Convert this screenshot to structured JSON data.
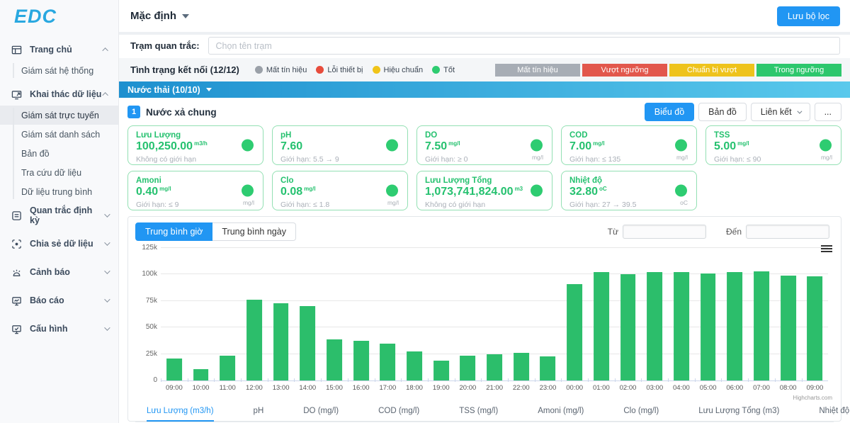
{
  "brand": {
    "logo": "EDC"
  },
  "sidebar": {
    "sections": [
      {
        "label": "Trang chủ",
        "icon": "window-icon",
        "expanded": true,
        "children": [
          "Giám sát hệ thống"
        ],
        "active_child": ""
      },
      {
        "label": "Khai thác dữ liệu",
        "icon": "monitor-share-icon",
        "expanded": true,
        "children": [
          "Giám sát trực tuyến",
          "Giám sát danh sách",
          "Bản đồ",
          "Tra cứu dữ liệu",
          "Dữ liệu trung bình"
        ],
        "active_child": "Giám sát trực tuyến"
      },
      {
        "label": "Quan trắc định kỳ",
        "icon": "form-icon",
        "expanded": false,
        "children": []
      },
      {
        "label": "Chia sẻ dữ liệu",
        "icon": "scan-share-icon",
        "expanded": false,
        "children": []
      },
      {
        "label": "Cảnh báo",
        "icon": "alarm-icon",
        "expanded": false,
        "children": []
      },
      {
        "label": "Báo cáo",
        "icon": "report-monitor-icon",
        "expanded": false,
        "children": []
      },
      {
        "label": "Cấu hình",
        "icon": "config-monitor-icon",
        "expanded": false,
        "children": []
      }
    ]
  },
  "header": {
    "preset_label": "Mặc định",
    "save_filter_button": "Lưu bộ lọc"
  },
  "filter": {
    "station_label": "Trạm quan trắc:",
    "station_placeholder": "Chọn tên trạm"
  },
  "connection": {
    "title": "Tình trạng kết nối (12/12)",
    "legend": [
      {
        "label": "Mất tín hiệu",
        "color": "#9aa0a8"
      },
      {
        "label": "Lỗi thiết bị",
        "color": "#e74c3c"
      },
      {
        "label": "Hiệu chuẩn",
        "color": "#f0c419"
      },
      {
        "label": "Tốt",
        "color": "#2ecc71"
      }
    ],
    "status_chips": [
      {
        "label": "Mất tín hiệu",
        "color": "#a7adb5"
      },
      {
        "label": "Vượt ngưỡng",
        "color": "#e2574c"
      },
      {
        "label": "Chuẩn bị vượt",
        "color": "#eec31c"
      },
      {
        "label": "Trong ngưỡng",
        "color": "#2dc76d"
      }
    ]
  },
  "group_bar": {
    "label": "Nước thải (10/10)"
  },
  "station": {
    "index": "1",
    "name": "Nước xả chung",
    "view_buttons": [
      {
        "label": "Biểu đồ",
        "active": true,
        "caret": false
      },
      {
        "label": "Bản đồ",
        "active": false,
        "caret": false
      },
      {
        "label": "Liên kết",
        "active": false,
        "caret": true
      },
      {
        "label": "...",
        "active": false,
        "caret": false
      }
    ]
  },
  "cards": [
    {
      "name": "Lưu Lượng",
      "value": "100,250.00",
      "unit": "m3/h",
      "limit": "Không có giới hạn",
      "corner_unit": "",
      "status_color": "#2ecc71"
    },
    {
      "name": "pH",
      "value": "7.60",
      "unit": "",
      "limit": "Giới hạn: 5.5 → 9",
      "corner_unit": "",
      "status_color": "#2ecc71"
    },
    {
      "name": "DO",
      "value": "7.50",
      "unit": "mg/l",
      "limit": "Giới hạn: ≥ 0",
      "corner_unit": "mg/l",
      "status_color": "#2ecc71"
    },
    {
      "name": "COD",
      "value": "7.00",
      "unit": "mg/l",
      "limit": "Giới hạn: ≤ 135",
      "corner_unit": "mg/l",
      "status_color": "#2ecc71"
    },
    {
      "name": "TSS",
      "value": "5.00",
      "unit": "mg/l",
      "limit": "Giới hạn: ≤ 90",
      "corner_unit": "mg/l",
      "status_color": "#2ecc71"
    },
    {
      "name": "Amoni",
      "value": "0.40",
      "unit": "mg/l",
      "limit": "Giới hạn: ≤ 9",
      "corner_unit": "mg/l",
      "status_color": "#2ecc71"
    },
    {
      "name": "Clo",
      "value": "0.08",
      "unit": "mg/l",
      "limit": "Giới hạn: ≤ 1.8",
      "corner_unit": "mg/l",
      "status_color": "#2ecc71"
    },
    {
      "name": "Lưu Lượng Tổng",
      "value": "1,073,741,824.00",
      "unit": "m3",
      "limit": "Không có giới hạn",
      "corner_unit": "",
      "status_color": "#2ecc71"
    },
    {
      "name": "Nhiệt độ",
      "value": "32.80",
      "unit": "oC",
      "limit": "Giới hạn: 27 → 39.5",
      "corner_unit": "oC",
      "status_color": "#2ecc71"
    }
  ],
  "chart_controls": {
    "tabs": [
      {
        "label": "Trung bình giờ",
        "active": true
      },
      {
        "label": "Trung bình ngày",
        "active": false
      }
    ],
    "from_label": "Từ",
    "from_value": "",
    "to_label": "Đến",
    "to_value": ""
  },
  "chart_data": {
    "type": "bar",
    "title": "",
    "xlabel": "",
    "ylabel": "",
    "categories": [
      "09:00",
      "10:00",
      "11:00",
      "12:00",
      "13:00",
      "14:00",
      "15:00",
      "16:00",
      "17:00",
      "18:00",
      "19:00",
      "20:00",
      "21:00",
      "22:00",
      "23:00",
      "00:00",
      "01:00",
      "02:00",
      "03:00",
      "04:00",
      "05:00",
      "06:00",
      "07:00",
      "08:00",
      "09:00"
    ],
    "series": [
      {
        "name": "Lưu Lượng (m3/h)",
        "values": [
          21000,
          10500,
          23500,
          76000,
          73000,
          70000,
          38500,
          37500,
          34500,
          27500,
          18500,
          23500,
          25000,
          26000,
          23000,
          91000,
          102500,
          100500,
          102000,
          102000,
          101000,
          102500,
          103000,
          99000,
          98500
        ]
      }
    ],
    "ylim": [
      0,
      125000
    ],
    "ytick_labels": [
      "0",
      "25k",
      "50k",
      "75k",
      "100k",
      "125k"
    ],
    "bar_color": "#2cbe6b",
    "grid": true,
    "legend_position": "bottom",
    "credit": "Highcharts.com"
  },
  "series_tabs": [
    {
      "label": "Lưu Lượng (m3/h)",
      "active": true
    },
    {
      "label": "pH",
      "active": false
    },
    {
      "label": "DO (mg/l)",
      "active": false
    },
    {
      "label": "COD (mg/l)",
      "active": false
    },
    {
      "label": "TSS (mg/l)",
      "active": false
    },
    {
      "label": "Amoni (mg/l)",
      "active": false
    },
    {
      "label": "Clo (mg/l)",
      "active": false
    },
    {
      "label": "Lưu Lượng Tổng (m3)",
      "active": false
    },
    {
      "label": "Nhiệt độ (oC)",
      "active": false
    }
  ]
}
